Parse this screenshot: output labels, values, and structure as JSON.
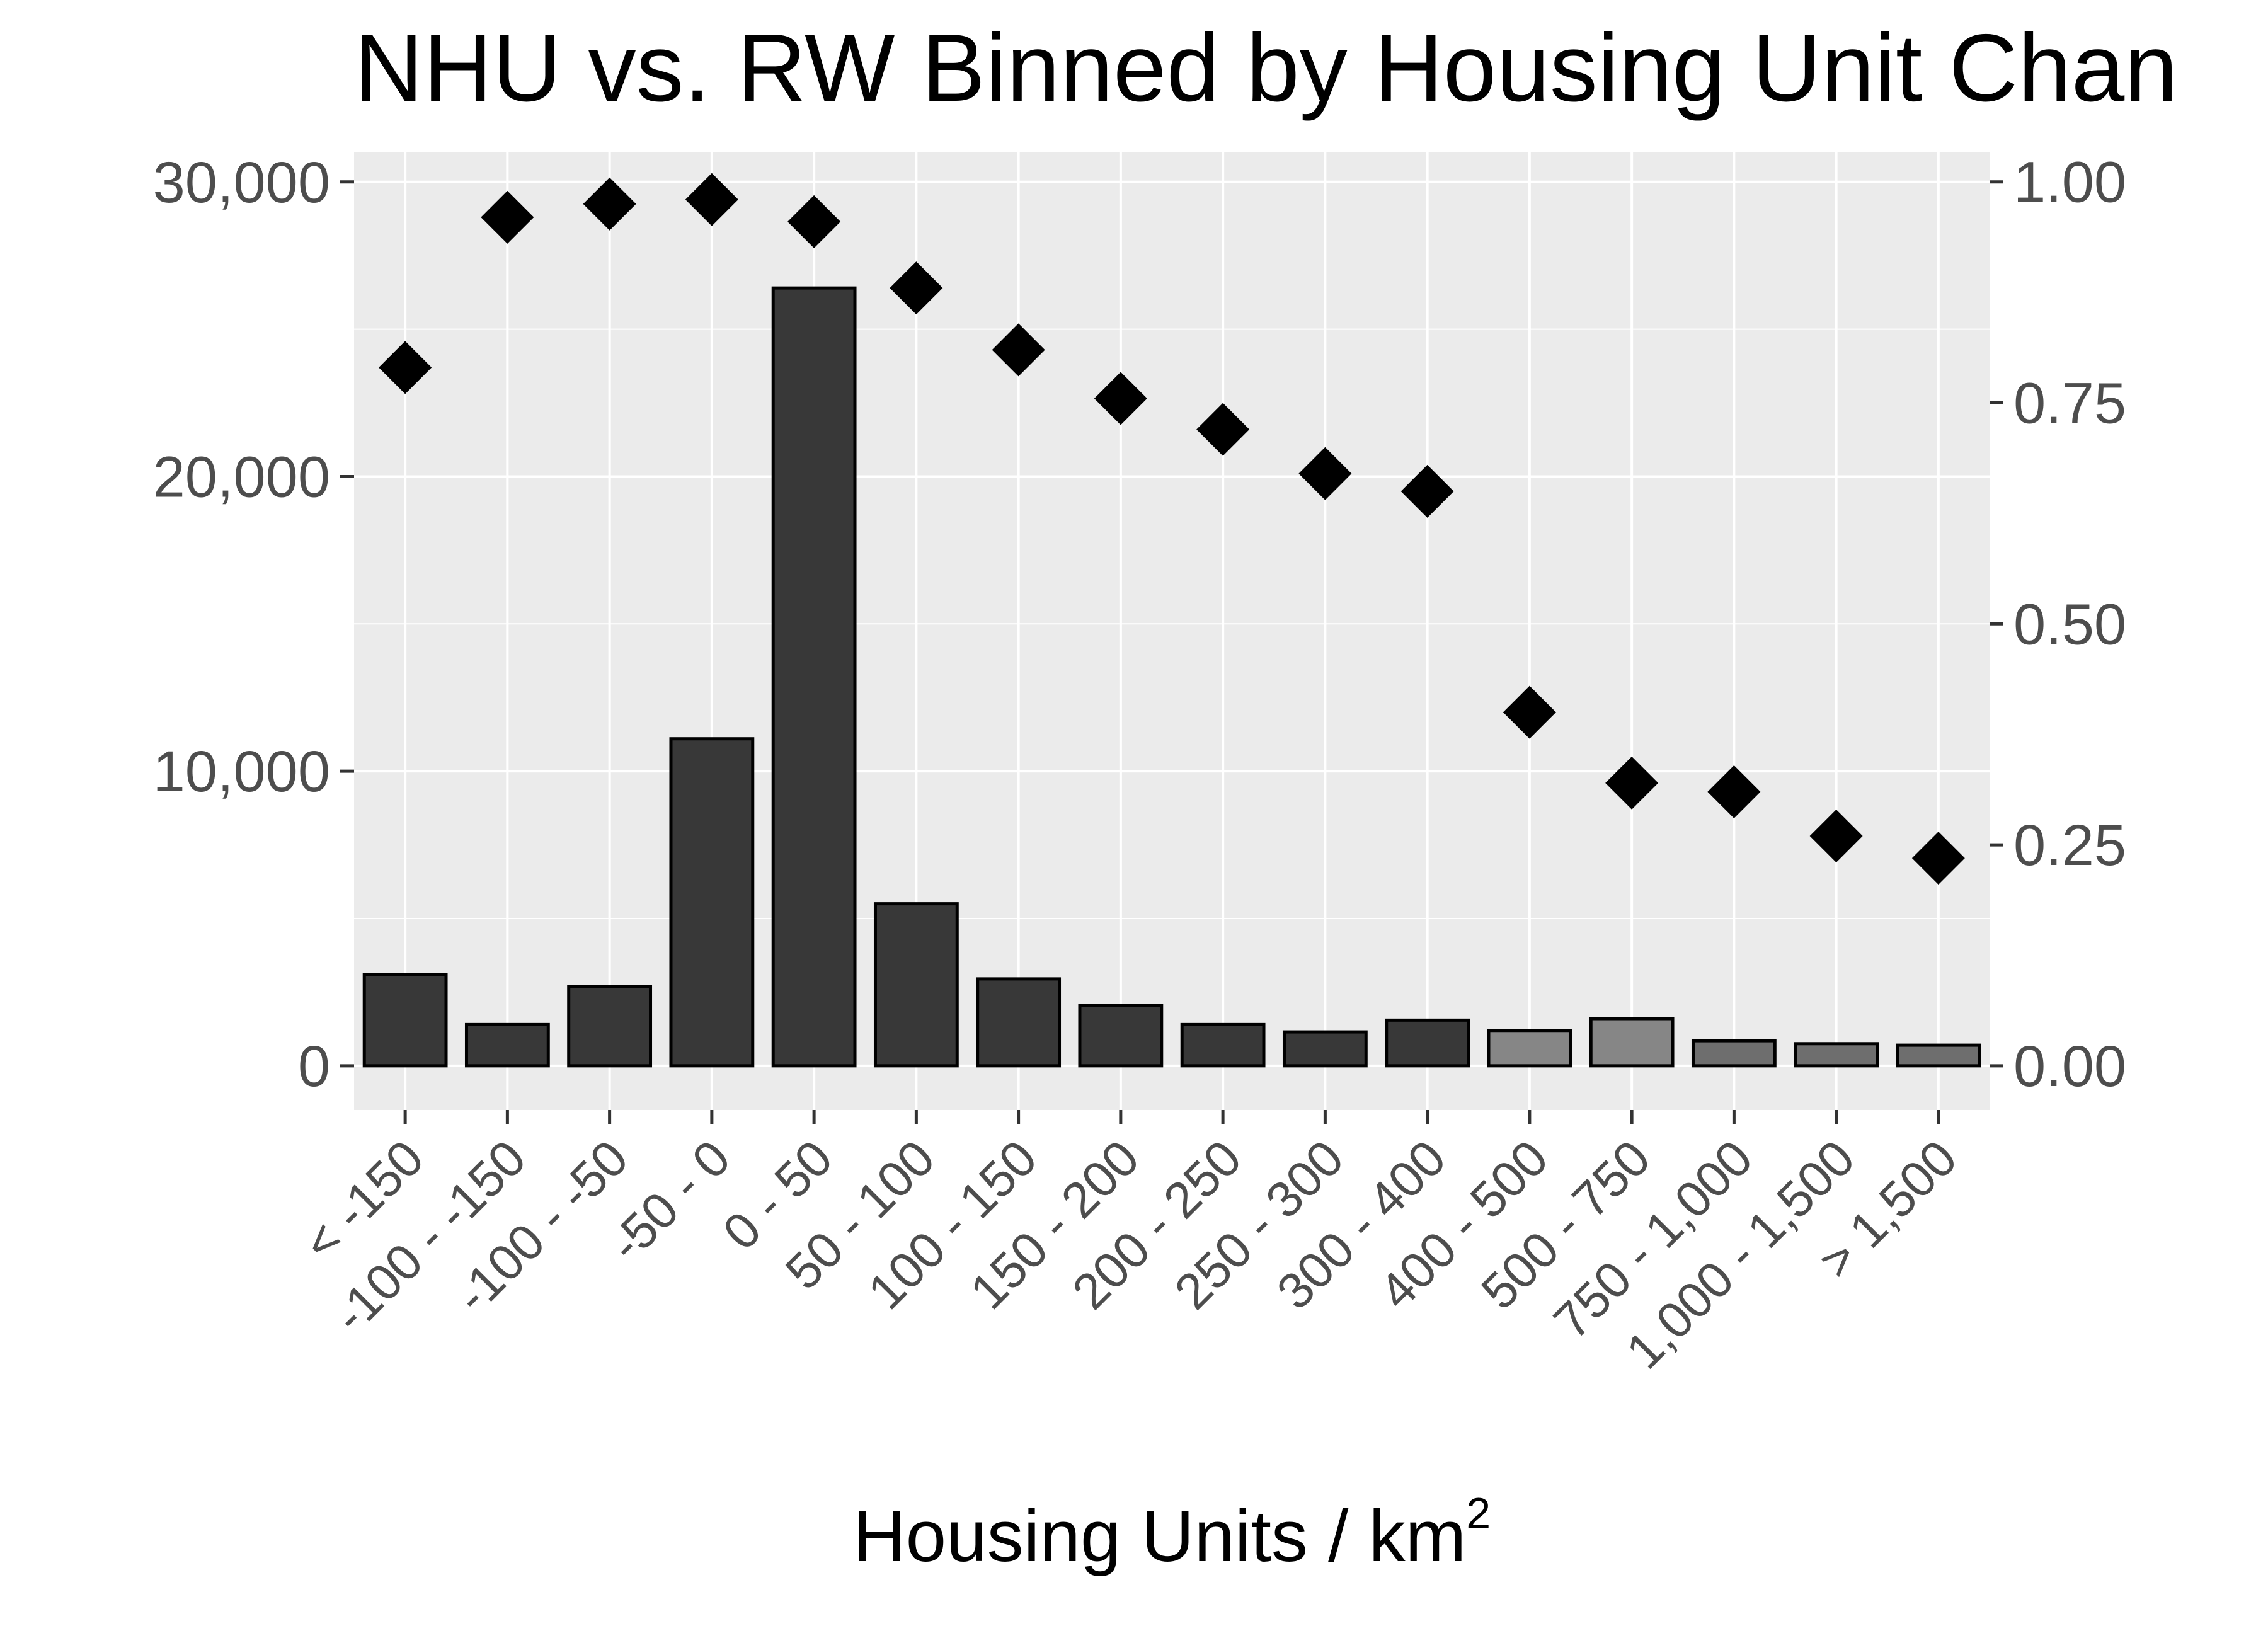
{
  "chart_data": {
    "type": "bar",
    "title": "NHU vs. RW Binned by Housing Unit Chan",
    "xlabel": "Housing Units / km",
    "xlabel_superscript": "2",
    "ylabel": "",
    "y2label": "",
    "categories": [
      "< -150",
      "-100 - -150",
      "-100 - -50",
      "-50 - 0",
      "0 - 50",
      "50 - 100",
      "100 - 150",
      "150 - 200",
      "200 - 250",
      "250 - 300",
      "300 - 400",
      "400 - 500",
      "500 - 750",
      "750 - 1,000",
      "1,000 - 1,500",
      "> 1,500"
    ],
    "series": [
      {
        "type": "bar",
        "axis": "left",
        "values": [
          3100,
          1400,
          2700,
          11100,
          26400,
          5500,
          2950,
          2050,
          1400,
          1150,
          1550,
          1200,
          1600,
          850,
          750,
          700
        ]
      },
      {
        "type": "scatter",
        "axis": "right",
        "marker": "diamond",
        "values": [
          0.79,
          0.96,
          0.975,
          0.98,
          0.955,
          0.88,
          0.81,
          0.755,
          0.72,
          0.67,
          0.65,
          0.4,
          0.32,
          0.31,
          0.26,
          0.235
        ]
      }
    ],
    "bar_fills": [
      "#383838",
      "#383838",
      "#383838",
      "#383838",
      "#383838",
      "#383838",
      "#383838",
      "#383838",
      "#383838",
      "#383838",
      "#383838",
      "#868686",
      "#868686",
      "#6e6e6e",
      "#6e6e6e",
      "#6e6e6e"
    ],
    "ylim": [
      -1500,
      31000
    ],
    "yticks": [
      0,
      10000,
      20000,
      30000
    ],
    "ytick_labels": [
      "0",
      "10,000",
      "20,000",
      "30,000"
    ],
    "y2lim": [
      -0.05,
      1.0333
    ],
    "y2ticks": [
      0,
      0.25,
      0.5,
      0.75,
      1.0
    ],
    "y2tick_labels": [
      "0.00",
      "0.25",
      "0.50",
      "0.75",
      "1.00"
    ],
    "grid": true,
    "legend": "none",
    "colors": {
      "panel_background": "#ebebeb",
      "grid_line": "#ffffff",
      "bar_outline": "#000000",
      "marker": "#000000",
      "tick_text": "#4d4d4d"
    }
  }
}
